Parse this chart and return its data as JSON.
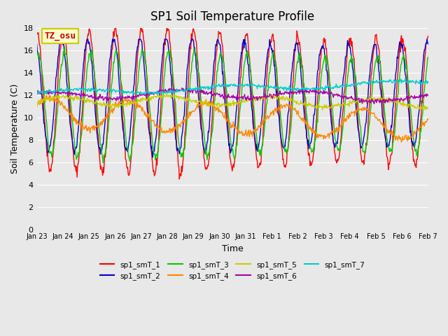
{
  "title": "SP1 Soil Temperature Profile",
  "xlabel": "Time",
  "ylabel": "Soil Temperature (C)",
  "ylim": [
    0,
    18
  ],
  "yticks": [
    0,
    2,
    4,
    6,
    8,
    10,
    12,
    14,
    16,
    18
  ],
  "xtick_labels": [
    "Jan 23",
    "Jan 24",
    "Jan 25",
    "Jan 26",
    "Jan 27",
    "Jan 28",
    "Jan 29",
    "Jan 30",
    "Jan 31",
    "Feb 1",
    "Feb 2",
    "Feb 3",
    "Feb 4",
    "Feb 5",
    "Feb 6",
    "Feb 7"
  ],
  "series_colors": [
    "#ff0000",
    "#0000cc",
    "#00cc00",
    "#ff8800",
    "#cccc00",
    "#aa00aa",
    "#00cccc"
  ],
  "series_labels": [
    "sp1_smT_1",
    "sp1_smT_2",
    "sp1_smT_3",
    "sp1_smT_4",
    "sp1_smT_5",
    "sp1_smT_6",
    "sp1_smT_7"
  ],
  "annotation_text": "TZ_osu",
  "annotation_color": "#cc0000",
  "annotation_bg": "#ffffcc",
  "annotation_border": "#cccc00",
  "background_color": "#e8e8e8",
  "grid_color": "#ffffff"
}
